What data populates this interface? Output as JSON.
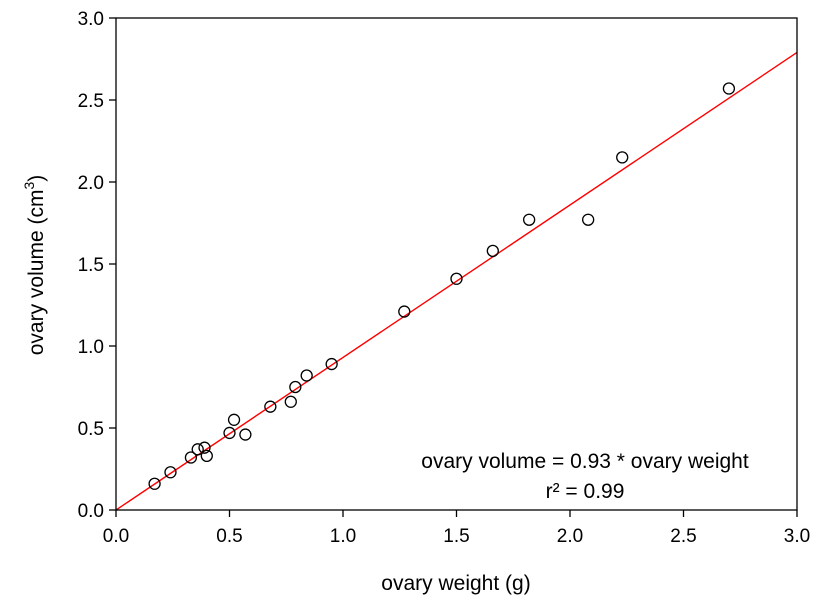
{
  "chart_data": {
    "type": "scatter",
    "title": "",
    "xlabel": "ovary weight (g)",
    "ylabel_main": "ovary volume (cm",
    "ylabel_sup": "3",
    "ylabel_tail": ")",
    "xlim": [
      0.0,
      3.0
    ],
    "ylim": [
      0.0,
      3.0
    ],
    "x_ticks": [
      "0.0",
      "0.5",
      "1.0",
      "1.5",
      "2.0",
      "2.5",
      "3.0"
    ],
    "y_ticks": [
      "0.0",
      "0.5",
      "1.0",
      "1.5",
      "2.0",
      "2.5",
      "3.0"
    ],
    "grid": false,
    "series": [
      {
        "marker": "open-circle",
        "x": [
          0.17,
          0.24,
          0.33,
          0.36,
          0.39,
          0.4,
          0.5,
          0.52,
          0.57,
          0.68,
          0.77,
          0.79,
          0.84,
          0.95,
          1.27,
          1.5,
          1.66,
          1.82,
          2.08,
          2.23,
          2.7
        ],
        "y": [
          0.16,
          0.23,
          0.32,
          0.37,
          0.38,
          0.33,
          0.47,
          0.55,
          0.46,
          0.63,
          0.66,
          0.75,
          0.82,
          0.89,
          1.21,
          1.41,
          1.58,
          1.77,
          1.77,
          2.15,
          2.57
        ]
      }
    ],
    "fit_line": {
      "slope": 0.93,
      "intercept": 0.0,
      "color": "#ff0000"
    },
    "annotation": {
      "equation": "ovary volume = 0.93 * ovary weight",
      "r2": "r² = 0.99"
    }
  }
}
